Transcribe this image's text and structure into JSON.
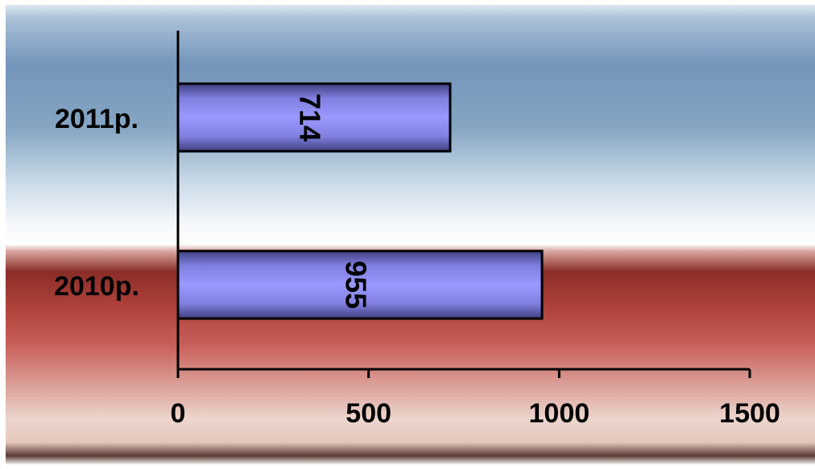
{
  "chart_data": {
    "type": "bar",
    "orientation": "horizontal",
    "categories": [
      "2011р.",
      "2010р."
    ],
    "values": [
      714,
      955
    ],
    "data_labels": [
      "714",
      "955"
    ],
    "data_label_rotation": "vertical, reading top-to-bottom",
    "xlim": [
      0,
      1500
    ],
    "x_ticks": [
      0,
      500,
      1000,
      1500
    ],
    "x_tick_labels": [
      "0",
      "500",
      "1000",
      "1500"
    ],
    "grid": false,
    "legend": "none",
    "colors": {
      "bar_light": "#9999ff",
      "bar_dark": "#3f3f82",
      "bar_outline": "#000000",
      "background_top": "#6f8fb8",
      "background_band": "#8a2f28",
      "text": "#000000"
    }
  }
}
